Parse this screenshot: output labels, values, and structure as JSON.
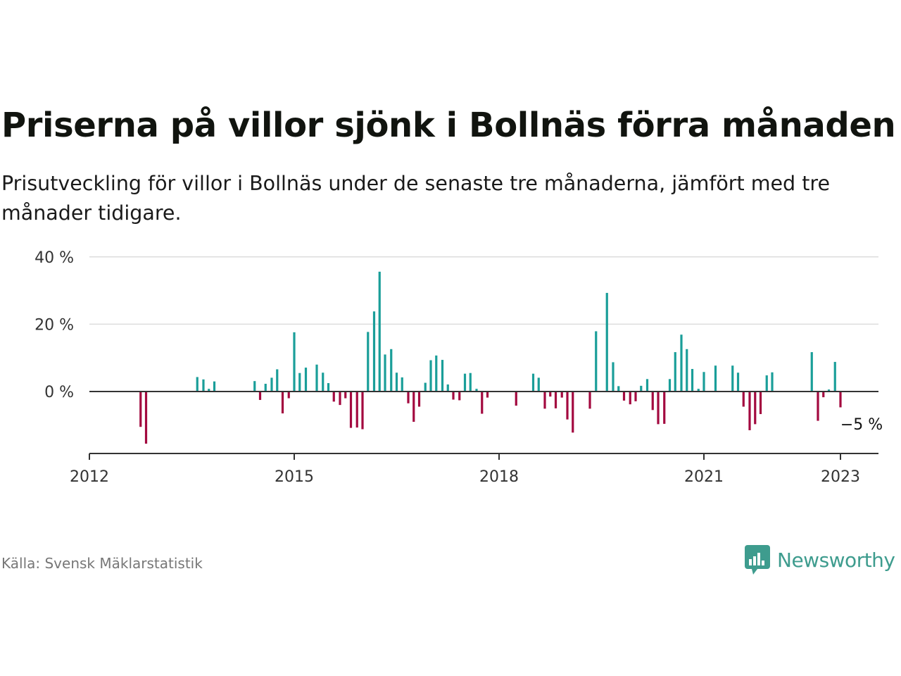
{
  "title": "Priserna på villor sjönk i Bollnäs förra månaden",
  "subtitle": "Prisutveckling för villor i Bollnäs under de senaste tre månaderna, jämfört med tre månader tidigare.",
  "source": "Källa: Svensk Mäklarstatistik",
  "brand": {
    "name": "Newsworthy",
    "color": "#3e9c8e"
  },
  "colors": {
    "positive": "#1a9e99",
    "negative": "#a3093f",
    "grid": "#dddddd",
    "axis": "#333333"
  },
  "chart_data": {
    "type": "bar",
    "title": "Priserna på villor sjönk i Bollnäs förra månaden",
    "ylim": [
      -18,
      40
    ],
    "yticks": [
      0,
      20,
      40
    ],
    "ytick_labels": [
      "0 %",
      "20 %",
      "40 %"
    ],
    "xticks": [
      2012,
      2015,
      2018,
      2021,
      2023
    ],
    "xtick_labels": [
      "2012",
      "2015",
      "2018",
      "2021",
      "2023"
    ],
    "grid": true,
    "annotation": {
      "x": 2023.0,
      "y": -4.7,
      "text": "−5 %"
    },
    "x": [
      2012.75,
      2012.83,
      2013.58,
      2013.67,
      2013.75,
      2013.83,
      2014.42,
      2014.5,
      2014.58,
      2014.67,
      2014.75,
      2014.83,
      2014.92,
      2015.0,
      2015.08,
      2015.17,
      2015.25,
      2015.33,
      2015.42,
      2015.5,
      2015.58,
      2015.67,
      2015.75,
      2015.83,
      2015.92,
      2016.0,
      2016.08,
      2016.17,
      2016.25,
      2016.33,
      2016.42,
      2016.5,
      2016.58,
      2016.67,
      2016.75,
      2016.83,
      2016.92,
      2017.0,
      2017.08,
      2017.17,
      2017.25,
      2017.33,
      2017.42,
      2017.5,
      2017.58,
      2017.67,
      2017.75,
      2017.83,
      2017.92,
      2018.0,
      2018.25,
      2018.5,
      2018.58,
      2018.67,
      2018.75,
      2018.83,
      2018.92,
      2019.0,
      2019.08,
      2019.17,
      2019.33,
      2019.42,
      2019.58,
      2019.67,
      2019.75,
      2019.83,
      2019.92,
      2020.0,
      2020.08,
      2020.17,
      2020.25,
      2020.33,
      2020.42,
      2020.5,
      2020.58,
      2020.67,
      2020.75,
      2020.83,
      2020.92,
      2021.0,
      2021.17,
      2021.42,
      2021.5,
      2021.58,
      2021.67,
      2021.75,
      2021.83,
      2021.92,
      2022.0,
      2022.58,
      2022.67,
      2022.75,
      2022.83,
      2022.92,
      2023.0
    ],
    "values": [
      -10.5,
      -15.5,
      4.3,
      3.6,
      0.8,
      3.0,
      3.1,
      -2.5,
      2.3,
      4.1,
      6.6,
      -6.5,
      -2.0,
      17.6,
      5.5,
      7.1,
      0.2,
      8.0,
      5.6,
      2.5,
      -3.0,
      -4.0,
      -2.0,
      -10.8,
      -10.7,
      -11.2,
      17.7,
      23.8,
      35.6,
      11.0,
      12.6,
      5.6,
      4.2,
      -3.5,
      -9.0,
      -4.5,
      2.6,
      9.3,
      10.7,
      9.4,
      2.1,
      -2.4,
      -2.6,
      5.3,
      5.5,
      0.8,
      -6.6,
      -1.8,
      0.2,
      0.2,
      -4.2,
      5.3,
      4.1,
      -5.1,
      -1.5,
      -5.0,
      -1.8,
      -8.3,
      -12.2,
      0.2,
      -5.1,
      17.9,
      29.3,
      8.7,
      1.6,
      -2.7,
      -3.8,
      -2.9,
      1.7,
      3.7,
      -5.5,
      -9.7,
      -9.6,
      3.7,
      11.7,
      16.9,
      12.6,
      6.7,
      0.8,
      5.8,
      7.7,
      7.7,
      5.6,
      -4.5,
      -11.5,
      -9.7,
      -6.7,
      4.8,
      5.7,
      11.7,
      -8.7,
      -1.7,
      0.6,
      8.8,
      -4.7
    ]
  }
}
